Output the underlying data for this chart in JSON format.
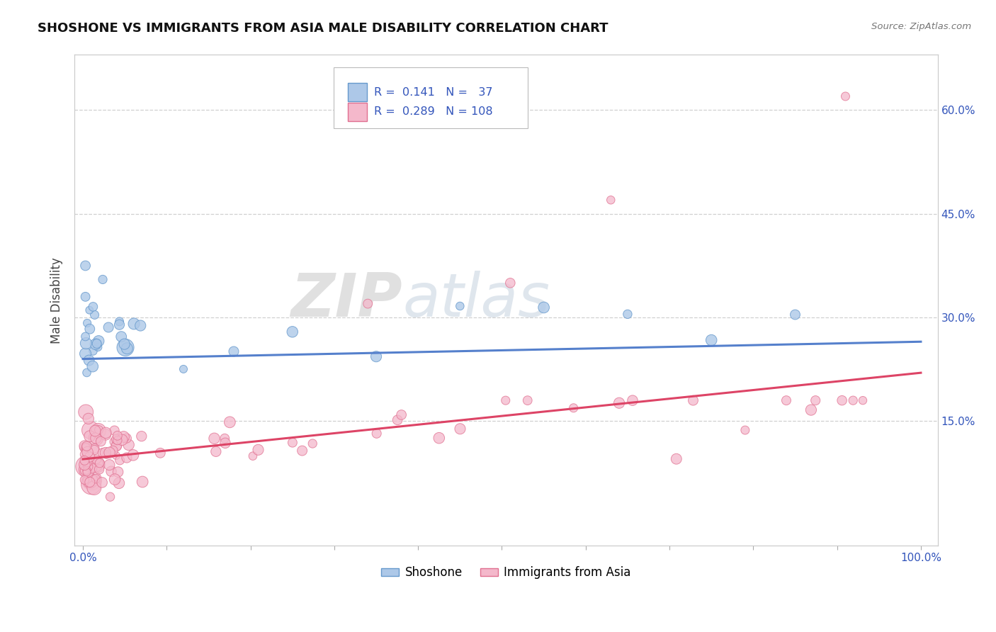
{
  "title": "SHOSHONE VS IMMIGRANTS FROM ASIA MALE DISABILITY CORRELATION CHART",
  "source_text": "Source: ZipAtlas.com",
  "ylabel": "Male Disability",
  "xlim": [
    0,
    100
  ],
  "ylim": [
    -3,
    68
  ],
  "ytick_vals": [
    0,
    15,
    30,
    45,
    60
  ],
  "right_ytick_labels": [
    "",
    "15.0%",
    "30.0%",
    "45.0%",
    "60.0%"
  ],
  "xtick_vals": [
    0,
    10,
    20,
    30,
    40,
    50,
    60,
    70,
    80,
    90,
    100
  ],
  "xtick_labels": [
    "0.0%",
    "",
    "",
    "",
    "",
    "",
    "",
    "",
    "",
    "",
    "100.0%"
  ],
  "shoshone_color": "#adc8e8",
  "shoshone_edge": "#6699cc",
  "immigrants_color": "#f4b8cb",
  "immigrants_edge": "#e07090",
  "trend_shoshone_color": "#5580cc",
  "trend_immigrants_color": "#dd4466",
  "legend_R1": "0.141",
  "legend_N1": "37",
  "legend_R2": "0.289",
  "legend_N2": "108",
  "grid_color": "#d0d0d0",
  "background_color": "#ffffff",
  "watermark_ZIP": "ZIP",
  "watermark_atlas": "atlas",
  "title_fontsize": 13,
  "tick_label_color": "#3355bb",
  "shoshone_trend_y0": 24.0,
  "shoshone_trend_y1": 26.5,
  "immigrants_trend_y0": 9.5,
  "immigrants_trend_y1": 22.0
}
